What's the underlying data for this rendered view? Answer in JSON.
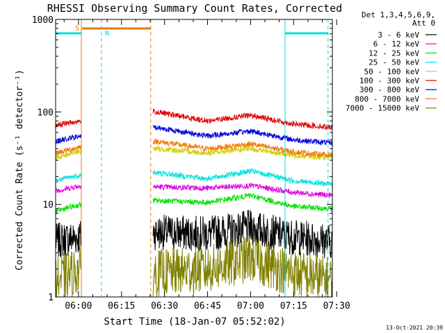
{
  "chart_data": {
    "type": "line",
    "title": "RHESSI Observing Summary Count Rates, Corrected",
    "xlabel": "Start Time (18-Jan-07 05:52:02)",
    "ylabel": "Corrected Count Rate (s⁻¹ detector⁻¹)",
    "yscale": "log",
    "ylim": [
      1,
      1000
    ],
    "xlim": [
      "05:52:02",
      "07:28:30"
    ],
    "x_ticks": [
      "06:00",
      "06:15",
      "06:30",
      "06:45",
      "07:00",
      "07:15",
      "07:30"
    ],
    "y_ticks": [
      "1",
      "10",
      "100",
      "1000"
    ],
    "legend_header": [
      "Det 1,3,4,5,6,9,",
      "Att 0"
    ],
    "legend_position": "right",
    "annotations": {
      "saa_label": "S",
      "night_label": "N",
      "saa_color": "#e8780a",
      "night_color": "#00dcdc"
    },
    "footer_date": "13-Oct-2021 20:39",
    "data_gap": [
      "06:01",
      "06:26"
    ],
    "series": [
      {
        "name": "3 - 6 keV",
        "color": "#000000",
        "start": [
          4.0,
          4.5
        ],
        "end": [
          4.0,
          4.0
        ],
        "midpoints": [
          [
            "06:27",
            5.0
          ],
          [
            "06:45",
            4.8
          ],
          [
            "07:00",
            5.6
          ],
          [
            "07:15",
            4.4
          ]
        ]
      },
      {
        "name": "6 - 12 keV",
        "color": "#e000e0",
        "start": [
          14.0,
          16.0
        ],
        "end": [
          12.5,
          12.5
        ],
        "midpoints": [
          [
            "06:27",
            15.5
          ],
          [
            "06:45",
            15.0
          ],
          [
            "07:00",
            16.0
          ],
          [
            "07:15",
            13.5
          ]
        ]
      },
      {
        "name": "12 - 25 keV",
        "color": "#00e000",
        "start": [
          8.5,
          10.0
        ],
        "end": [
          9.0,
          9.0
        ],
        "midpoints": [
          [
            "06:27",
            11.0
          ],
          [
            "06:45",
            10.5
          ],
          [
            "07:00",
            12.5
          ],
          [
            "07:15",
            9.5
          ]
        ]
      },
      {
        "name": "25 - 50 keV",
        "color": "#00e0e0",
        "start": [
          18.0,
          21.0
        ],
        "end": [
          16.5,
          16.5
        ],
        "midpoints": [
          [
            "06:27",
            22.0
          ],
          [
            "06:45",
            19.0
          ],
          [
            "07:00",
            23.0
          ],
          [
            "07:15",
            18.0
          ]
        ]
      },
      {
        "name": "50 - 100 keV",
        "color": "#d0d000",
        "start": [
          32.0,
          38.0
        ],
        "end": [
          32.0,
          32.0
        ],
        "midpoints": [
          [
            "06:27",
            40.0
          ],
          [
            "06:45",
            36.0
          ],
          [
            "07:00",
            40.0
          ],
          [
            "07:15",
            34.0
          ]
        ]
      },
      {
        "name": "100 - 300 keV",
        "color": "#e00000",
        "start": [
          72.0,
          80.0
        ],
        "end": [
          68.0,
          68.0
        ],
        "midpoints": [
          [
            "06:27",
            100.0
          ],
          [
            "06:45",
            80.0
          ],
          [
            "07:00",
            92.0
          ],
          [
            "07:15",
            74.0
          ]
        ]
      },
      {
        "name": "300 - 800 keV",
        "color": "#0000e0",
        "start": [
          48.0,
          55.0
        ],
        "end": [
          46.0,
          46.0
        ],
        "midpoints": [
          [
            "06:27",
            68.0
          ],
          [
            "06:45",
            55.0
          ],
          [
            "07:00",
            62.0
          ],
          [
            "07:15",
            50.0
          ]
        ]
      },
      {
        "name": "800 - 7000 keV",
        "color": "#f07800",
        "start": [
          36.0,
          42.0
        ],
        "end": [
          34.0,
          34.0
        ],
        "midpoints": [
          [
            "06:27",
            48.0
          ],
          [
            "06:45",
            40.0
          ],
          [
            "07:00",
            45.0
          ],
          [
            "07:15",
            37.0
          ]
        ]
      },
      {
        "name": "7000 - 15000 keV",
        "color": "#808000",
        "start": [
          1.5,
          2.0
        ],
        "end": [
          1.5,
          1.5
        ],
        "midpoints": [
          [
            "06:27",
            1.8
          ],
          [
            "06:45",
            2.0
          ],
          [
            "07:00",
            2.6
          ],
          [
            "07:15",
            1.8
          ]
        ]
      }
    ]
  }
}
